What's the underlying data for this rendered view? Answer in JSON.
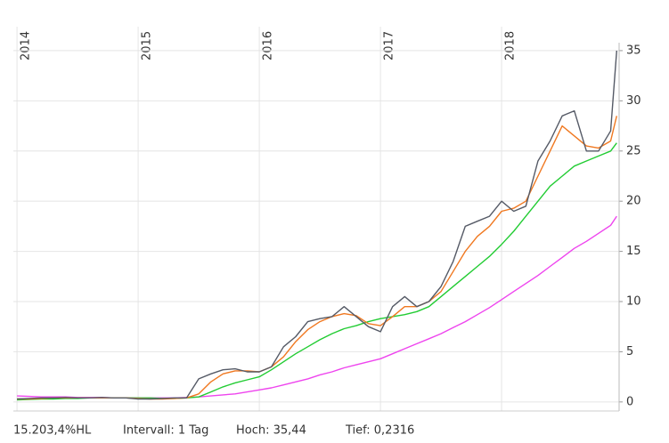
{
  "chart_data": {
    "type": "line",
    "xlim": [
      2013.97,
      2018.97
    ],
    "xticks": [
      2014,
      2015,
      2016,
      2017,
      2018
    ],
    "ylim": [
      -0.9,
      36.5
    ],
    "yticks": [
      0,
      5,
      10,
      15,
      20,
      25,
      30,
      35
    ],
    "grid": true,
    "x": [
      2014.0,
      2014.1,
      2014.2,
      2014.3,
      2014.4,
      2014.5,
      2014.6,
      2014.7,
      2014.8,
      2014.9,
      2015.0,
      2015.1,
      2015.2,
      2015.3,
      2015.4,
      2015.5,
      2015.6,
      2015.7,
      2015.8,
      2015.9,
      2016.0,
      2016.1,
      2016.2,
      2016.3,
      2016.4,
      2016.5,
      2016.6,
      2016.7,
      2016.8,
      2016.9,
      2017.0,
      2017.1,
      2017.2,
      2017.3,
      2017.4,
      2017.5,
      2017.6,
      2017.7,
      2017.8,
      2017.9,
      2018.0,
      2018.1,
      2018.2,
      2018.3,
      2018.4,
      2018.5,
      2018.6,
      2018.7,
      2018.8,
      2018.9,
      2018.95
    ],
    "series": [
      {
        "color": "#ee44ee",
        "values": [
          0.6,
          0.55,
          0.5,
          0.5,
          0.5,
          0.45,
          0.45,
          0.45,
          0.4,
          0.4,
          0.4,
          0.4,
          0.4,
          0.4,
          0.45,
          0.5,
          0.6,
          0.7,
          0.8,
          1.0,
          1.2,
          1.4,
          1.7,
          2.0,
          2.3,
          2.7,
          3.0,
          3.4,
          3.7,
          4.0,
          4.3,
          4.8,
          5.3,
          5.8,
          6.3,
          6.8,
          7.4,
          8.0,
          8.7,
          9.4,
          10.2,
          11,
          11.8,
          12.6,
          13.5,
          14.4,
          15.3,
          16.0,
          16.8,
          17.6,
          18.5
        ]
      },
      {
        "color": "#22cc33",
        "values": [
          0.2,
          0.25,
          0.3,
          0.3,
          0.35,
          0.35,
          0.4,
          0.4,
          0.4,
          0.4,
          0.4,
          0.4,
          0.35,
          0.35,
          0.4,
          0.5,
          1.0,
          1.5,
          1.9,
          2.2,
          2.5,
          3.2,
          4.0,
          4.8,
          5.5,
          6.2,
          6.8,
          7.3,
          7.6,
          8.0,
          8.3,
          8.5,
          8.7,
          9.0,
          9.5,
          10.5,
          11.5,
          12.5,
          13.5,
          14.5,
          15.7,
          17,
          18.5,
          20,
          21.5,
          22.5,
          23.5,
          24.0,
          24.5,
          25.0,
          25.8
        ]
      },
      {
        "color": "#f07820",
        "values": [
          0.3,
          0.3,
          0.35,
          0.4,
          0.4,
          0.4,
          0.4,
          0.4,
          0.4,
          0.4,
          0.35,
          0.3,
          0.3,
          0.35,
          0.4,
          0.8,
          2.0,
          2.8,
          3.1,
          3.1,
          3.0,
          3.5,
          4.5,
          6,
          7.2,
          8,
          8.5,
          8.8,
          8.6,
          7.8,
          7.6,
          8.5,
          9.5,
          9.5,
          10,
          11,
          13,
          15,
          16.5,
          17.5,
          19,
          19.3,
          20,
          22.5,
          25,
          27.5,
          26.5,
          25.5,
          25.3,
          26,
          28.5
        ]
      },
      {
        "color": "#555a66",
        "values": [
          0.3,
          0.35,
          0.4,
          0.4,
          0.45,
          0.4,
          0.4,
          0.45,
          0.4,
          0.4,
          0.3,
          0.3,
          0.35,
          0.4,
          0.4,
          2.3,
          2.8,
          3.2,
          3.3,
          3.0,
          3.0,
          3.5,
          5.5,
          6.5,
          8.0,
          8.3,
          8.5,
          9.5,
          8.5,
          7.5,
          7.0,
          9.5,
          10.5,
          9.5,
          10,
          11.5,
          14,
          17.5,
          18,
          18.5,
          20,
          19,
          19.5,
          24,
          26,
          28.5,
          29,
          25,
          25,
          27,
          35
        ]
      }
    ],
    "footer": [
      "15.203,4%HL",
      "Intervall: 1 Tag",
      "Hoch:  35,44",
      "Tief: 0,2316"
    ]
  }
}
